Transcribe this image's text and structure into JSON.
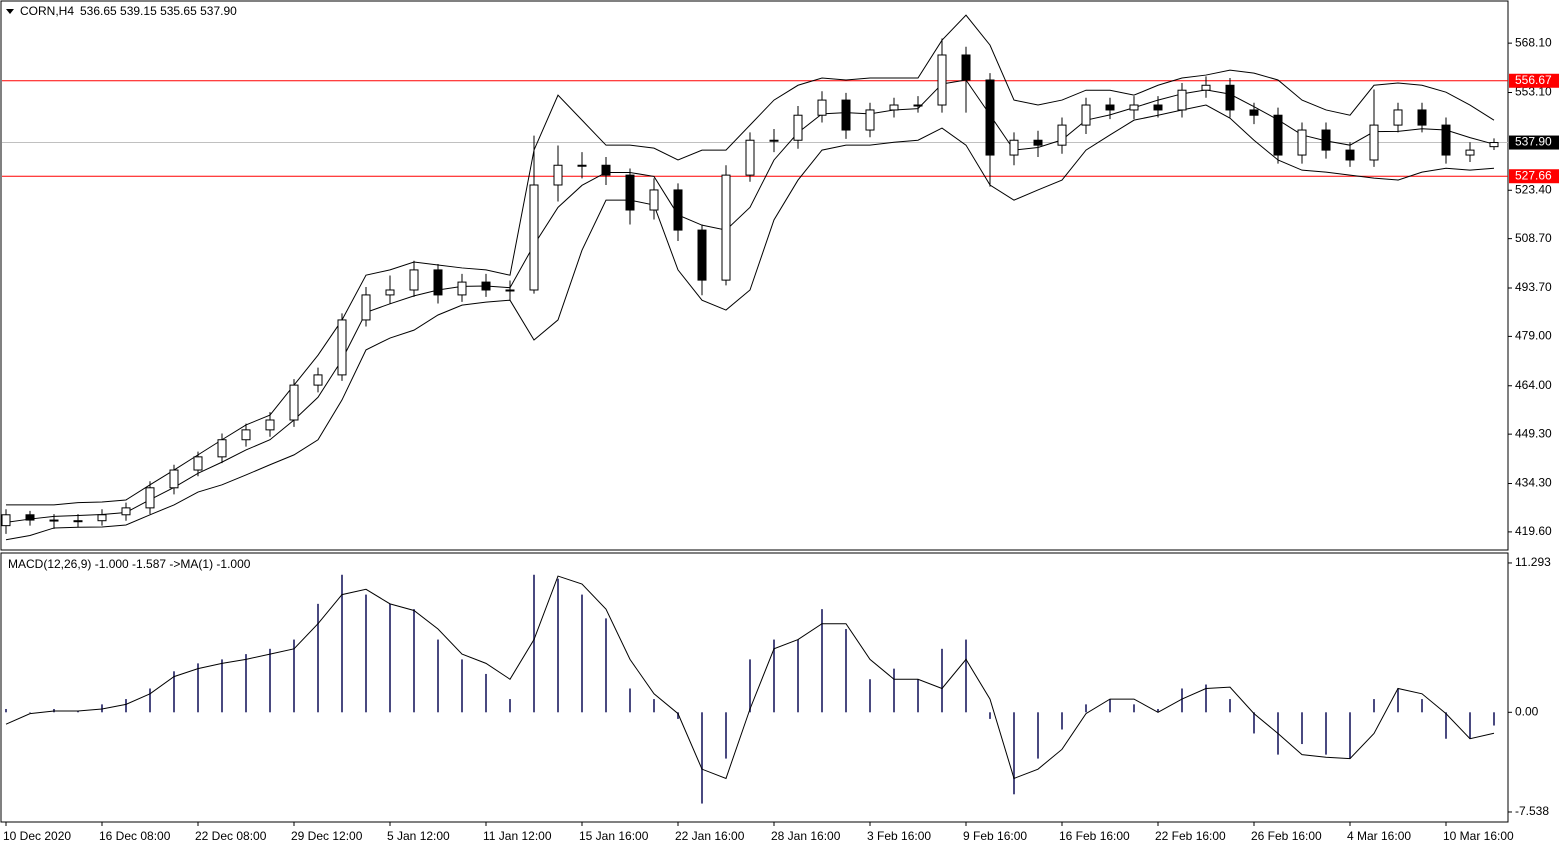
{
  "chart_data": [
    {
      "type": "candlestick",
      "symbol": "CORN,H4",
      "header": "536.65 539.15 535.65 537.90",
      "categories": [
        "10 Dec 2020",
        null,
        null,
        null,
        "16 Dec 08:00",
        null,
        null,
        null,
        "22 Dec 08:00",
        null,
        null,
        null,
        "29 Dec 12:00",
        null,
        null,
        null,
        "5 Jan 12:00",
        null,
        null,
        null,
        "11 Jan 12:00",
        null,
        null,
        null,
        "15 Jan 16:00",
        null,
        null,
        null,
        "22 Jan 16:00",
        null,
        null,
        null,
        "28 Jan 16:00",
        null,
        null,
        null,
        "3 Feb 16:00",
        null,
        null,
        null,
        "9 Feb 16:00",
        null,
        null,
        null,
        "16 Feb 16:00",
        null,
        null,
        null,
        "22 Feb 16:00",
        null,
        null,
        null,
        "26 Feb 16:00",
        null,
        null,
        null,
        "4 Mar 16:00",
        null,
        null,
        null,
        "10 Mar 16:00",
        null,
        null
      ],
      "open": [
        421.5,
        424.8,
        423.2,
        423.0,
        423.0,
        424.8,
        426.9,
        433.0,
        438.4,
        442.4,
        447.6,
        450.6,
        453.6,
        464.2,
        467.3,
        484.0,
        491.6,
        493.1,
        499.2,
        491.6,
        495.5,
        493.1,
        493.1,
        525.0,
        531.0,
        531.0,
        528.0,
        517.4,
        523.5,
        511.3,
        496.1,
        528.0,
        538.6,
        538.6,
        546.2,
        550.8,
        541.7,
        547.8,
        549.3,
        549.3,
        564.5,
        556.9,
        534.1,
        538.6,
        537.1,
        543.2,
        549.3,
        547.8,
        549.3,
        547.8,
        553.8,
        555.3,
        547.8,
        546.2,
        534.1,
        541.7,
        535.6,
        532.6,
        543.2,
        547.8,
        543.2,
        534.1,
        536.65
      ],
      "high": [
        426.5,
        426.0,
        425.0,
        425.0,
        426.5,
        428.5,
        435.0,
        440.0,
        444.0,
        449.5,
        452.5,
        456.0,
        466.0,
        469.5,
        486.0,
        494.0,
        497.5,
        502.0,
        501.0,
        498.0,
        498.0,
        496.0,
        540.0,
        537.0,
        535.0,
        533.5,
        530.0,
        527.0,
        525.5,
        513.0,
        531.0,
        541.0,
        542.0,
        549.0,
        553.5,
        553.0,
        550.0,
        551.5,
        552.0,
        569.5,
        567.0,
        559.0,
        541.0,
        541.5,
        545.5,
        551.5,
        551.5,
        552.0,
        552.0,
        556.0,
        558.0,
        557.5,
        550.0,
        548.5,
        544.0,
        544.0,
        538.0,
        554.0,
        550.0,
        550.0,
        545.5,
        538.0,
        539.15
      ],
      "low": [
        419.0,
        421.5,
        420.5,
        421.0,
        421.5,
        423.0,
        425.0,
        431.0,
        436.5,
        440.5,
        445.5,
        448.5,
        451.5,
        462.0,
        465.5,
        482.0,
        489.0,
        491.0,
        489.0,
        489.5,
        491.0,
        490.0,
        492.0,
        520.0,
        527.0,
        525.0,
        513.0,
        514.5,
        508.0,
        491.5,
        494.5,
        526.0,
        535.0,
        536.0,
        544.0,
        539.0,
        539.5,
        545.5,
        547.0,
        547.0,
        547.0,
        524.5,
        531.0,
        533.5,
        534.5,
        540.5,
        545.0,
        545.0,
        545.5,
        545.5,
        551.5,
        545.5,
        543.5,
        531.5,
        531.5,
        533.0,
        530.5,
        530.5,
        541.0,
        541.0,
        531.5,
        532.0,
        535.65
      ],
      "close": [
        424.8,
        423.2,
        423.0,
        423.0,
        424.8,
        426.9,
        433.0,
        438.4,
        442.4,
        447.6,
        450.6,
        453.6,
        464.2,
        467.3,
        484.0,
        491.6,
        493.1,
        499.2,
        491.6,
        495.5,
        493.1,
        493.1,
        525.0,
        531.0,
        531.0,
        528.0,
        517.4,
        523.5,
        511.3,
        496.1,
        528.0,
        538.6,
        538.6,
        546.2,
        550.8,
        541.7,
        547.8,
        549.3,
        549.3,
        564.5,
        556.9,
        534.1,
        538.6,
        537.1,
        543.2,
        549.3,
        547.8,
        549.3,
        547.8,
        553.8,
        555.3,
        547.8,
        546.2,
        534.1,
        541.7,
        535.6,
        532.6,
        543.2,
        547.8,
        543.2,
        534.1,
        535.6,
        537.9
      ],
      "up_color": "#ffffff",
      "down_color": "#000000",
      "line_color": "#000000",
      "bands": {
        "color": "#000000",
        "upper": [
          427.8,
          427.8,
          427.8,
          428.5,
          428.7,
          429.3,
          433.9,
          438.4,
          443.0,
          447.6,
          452.1,
          455.1,
          464.2,
          473.3,
          484.0,
          497.6,
          499.2,
          501.6,
          500.7,
          499.8,
          499.2,
          497.6,
          535.6,
          552.3,
          544.7,
          537.1,
          537.1,
          536.2,
          532.6,
          535.6,
          535.6,
          543.2,
          550.8,
          555.3,
          557.5,
          556.9,
          557.5,
          557.5,
          557.5,
          569.0,
          576.6,
          567.5,
          550.8,
          549.3,
          550.8,
          553.8,
          553.8,
          552.3,
          555.3,
          557.5,
          558.4,
          559.9,
          559.0,
          556.9,
          550.8,
          547.8,
          546.2,
          555.3,
          556.0,
          555.3,
          553.2,
          549.3,
          544.7
        ],
        "middle": [
          422.5,
          423.5,
          424.3,
          424.6,
          424.9,
          425.5,
          429.4,
          433.1,
          437.4,
          440.8,
          444.5,
          447.6,
          453.6,
          460.5,
          471.9,
          486.3,
          488.9,
          491.3,
          493.1,
          494.2,
          494.3,
          493.8,
          506.8,
          518.2,
          524.9,
          528.8,
          528.8,
          527.6,
          515.9,
          512.8,
          511.3,
          518.2,
          532.6,
          540.9,
          546.6,
          547.0,
          546.6,
          547.8,
          548.2,
          555.7,
          556.9,
          546.3,
          535.6,
          536.4,
          538.7,
          544.7,
          546.3,
          548.5,
          550.8,
          552.7,
          553.9,
          552.6,
          548.8,
          544.8,
          540.2,
          538.4,
          537.1,
          541.2,
          541.3,
          542.1,
          541.7,
          539.4,
          537.4
        ],
        "lower": [
          417.2,
          418.5,
          420.8,
          421.0,
          421.1,
          421.7,
          424.8,
          427.8,
          431.7,
          433.9,
          436.9,
          440.0,
          443.0,
          447.6,
          459.7,
          474.9,
          478.5,
          480.9,
          485.5,
          488.5,
          489.4,
          490.0,
          477.9,
          484.0,
          505.2,
          520.4,
          520.4,
          518.9,
          499.2,
          490.0,
          487.0,
          493.1,
          514.4,
          526.5,
          535.6,
          537.1,
          537.1,
          538.0,
          538.6,
          542.3,
          537.1,
          525.0,
          520.4,
          523.5,
          526.5,
          535.6,
          540.2,
          544.7,
          546.2,
          547.8,
          549.3,
          545.3,
          538.6,
          532.6,
          529.5,
          528.9,
          528.0,
          527.1,
          526.5,
          528.9,
          530.1,
          529.5,
          530.1
        ]
      },
      "hlines": [
        {
          "value": 556.67,
          "label": "556.67",
          "color": "#ff0000"
        },
        {
          "value": 537.9,
          "label": "537.90",
          "color": "#c0c0c0"
        },
        {
          "value": 527.66,
          "label": "527.66",
          "color": "#ff0000"
        }
      ],
      "ylim": [
        414.1,
        580.6
      ],
      "yticks": [
        {
          "value": 568.1,
          "label": "568.10"
        },
        {
          "value": 553.1,
          "label": "553.10"
        },
        {
          "value": 523.4,
          "label": "523.40"
        },
        {
          "value": 508.7,
          "label": "508.70"
        },
        {
          "value": 493.7,
          "label": "493.70"
        },
        {
          "value": 479.0,
          "label": "479.00"
        },
        {
          "value": 464.0,
          "label": "464.00"
        },
        {
          "value": 449.3,
          "label": "449.30"
        },
        {
          "value": 434.3,
          "label": "434.30"
        },
        {
          "value": 419.6,
          "label": "419.60"
        }
      ]
    },
    {
      "type": "macd",
      "title": "MACD(12,26,9) -1.000 -1.587  ->MA(1) -1.000",
      "values": [
        0.25,
        0,
        0.25,
        0.1,
        0.6,
        1.0,
        1.8,
        3.1,
        3.7,
        4.0,
        4.4,
        4.8,
        5.5,
        8.2,
        10.4,
        8.9,
        8.2,
        7.8,
        5.5,
        4.0,
        2.9,
        1.0,
        10.4,
        10.1,
        8.9,
        7.1,
        1.8,
        1.0,
        -0.5,
        -6.9,
        -3.5,
        4.0,
        5.5,
        5.5,
        7.8,
        6.3,
        2.5,
        3.3,
        2.5,
        4.8,
        5.5,
        -0.5,
        -6.2,
        -3.5,
        -1.3,
        0.6,
        1.0,
        0.6,
        0.25,
        1.8,
        2.1,
        1.0,
        -1.6,
        -3.2,
        -2.4,
        -3.2,
        -3.5,
        1.0,
        1.8,
        1.0,
        -2.0,
        -2.0,
        -1.0
      ],
      "color": "#4a4a80",
      "signal": [
        -0.9,
        -0.1,
        0.1,
        0.1,
        0.25,
        0.6,
        1.4,
        2.7,
        3.3,
        3.7,
        4.0,
        4.4,
        4.8,
        6.7,
        8.9,
        9.3,
        8.2,
        7.7,
        6.3,
        4.4,
        3.7,
        2.5,
        5.5,
        10.3,
        9.7,
        7.8,
        4.0,
        1.4,
        -0.1,
        -4.3,
        -5.0,
        0.25,
        4.8,
        5.5,
        6.7,
        6.7,
        4.0,
        2.5,
        2.5,
        1.8,
        4.0,
        1.0,
        -5.0,
        -4.3,
        -2.8,
        -0.1,
        1.0,
        1.0,
        0,
        1.0,
        1.8,
        1.9,
        -0.1,
        -1.6,
        -3.2,
        -3.4,
        -3.5,
        -1.6,
        1.8,
        1.4,
        -0.1,
        -2.0,
        -1.587
      ],
      "signal_color": "#000000",
      "ylim": [
        -8.22,
        11.97
      ],
      "yticks": [
        11.293,
        {
          "value": 0,
          "label": "0.00"
        },
        -7.538
      ]
    }
  ]
}
